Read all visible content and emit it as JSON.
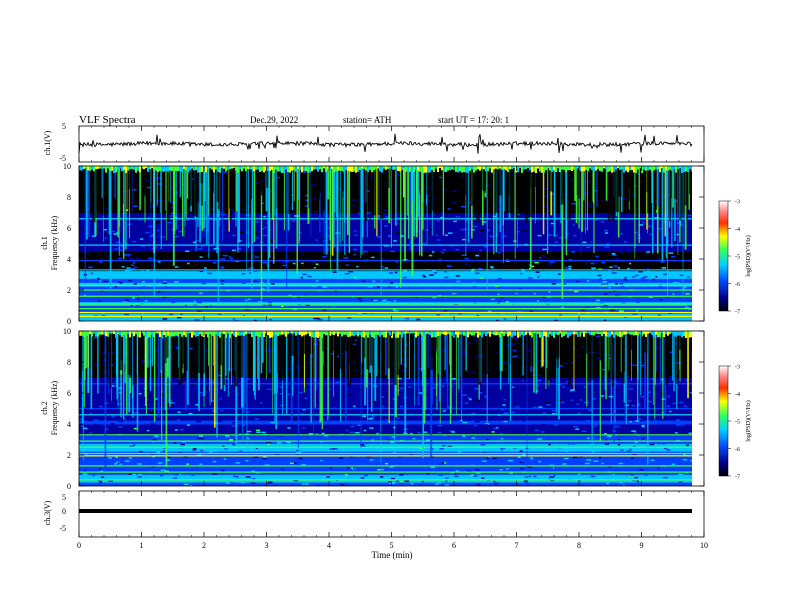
{
  "header": {
    "title": "VLF  Spectra",
    "date": "Dec.29, 2022",
    "station": "station= ATH",
    "start": "start  UT  =    17: 20: 1"
  },
  "chart_data": [
    {
      "type": "line",
      "ylabel": "ch.1(V)",
      "ylim": [
        -5,
        5
      ],
      "yticks": [
        "5",
        "-5"
      ],
      "xlim": [
        0,
        10
      ],
      "description_level_v": 0.0,
      "color": "#000000"
    },
    {
      "type": "heatmap",
      "ylabel_line1": "ch.1",
      "ylabel_line2": "Frequency  (kHz)",
      "ylim": [
        0,
        10
      ],
      "yticks": [
        "0",
        "2",
        "4",
        "6",
        "8",
        "10"
      ],
      "xlim": [
        0,
        10
      ],
      "colorbar": {
        "label": "log(PSD)(V²/Hz)",
        "range": [
          -7,
          -3
        ],
        "ticks": [
          "-3",
          "-4",
          "-5",
          "-6",
          "-7"
        ]
      }
    },
    {
      "type": "heatmap",
      "ylabel_line1": "ch.2",
      "ylabel_line2": "Frequency  (kHz)",
      "ylim": [
        0,
        10
      ],
      "yticks": [
        "0",
        "2",
        "4",
        "6",
        "8",
        "10"
      ],
      "xlim": [
        0,
        10
      ],
      "colorbar": {
        "label": "log(PSD)(V²/Hz)",
        "range": [
          -7,
          -3
        ],
        "ticks": [
          "-3",
          "-4",
          "-5",
          "-6",
          "-7"
        ]
      }
    },
    {
      "type": "line",
      "ylabel": "ch.3(V)",
      "ylim": [
        -5,
        5
      ],
      "yticks": [
        "5",
        "0",
        "-5"
      ],
      "xlim": [
        0,
        10
      ],
      "level_v": 0.0,
      "color": "#000000"
    }
  ],
  "xaxis": {
    "label": "Time  (min)",
    "ticks": [
      "0",
      "1",
      "2",
      "3",
      "4",
      "5",
      "6",
      "7",
      "8",
      "9",
      "10"
    ],
    "range": [
      0,
      10
    ]
  },
  "colors": {
    "background_dark": "#000000",
    "deep_blue": "#0000a0",
    "blue": "#0040ff",
    "cyan": "#00c8ff",
    "green": "#40ff40",
    "yellow": "#ffff00",
    "red": "#ff0000"
  }
}
